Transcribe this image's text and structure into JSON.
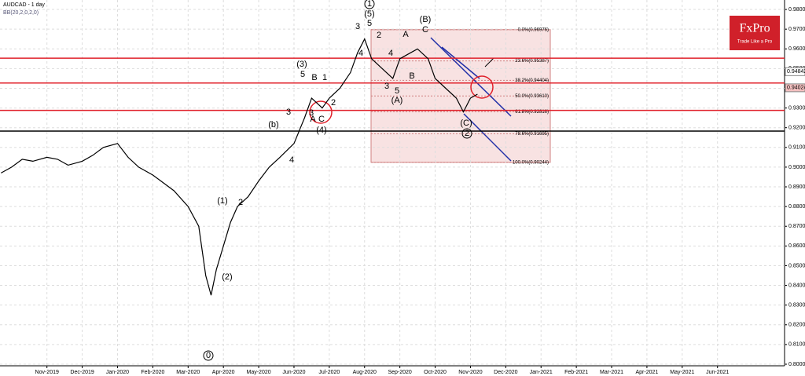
{
  "chart_data": {
    "type": "line",
    "title": "AUDCAD - 1 day",
    "subtitle": "BB(20,2,0,2,0)",
    "logo": "FxPro",
    "tagline": "Trade Like a Pro",
    "x": [
      -0.3,
      0,
      0.3,
      0.6,
      1,
      1.3,
      1.6,
      2,
      2.3,
      2.6,
      3,
      3.3,
      3.6,
      4,
      4.3,
      4.6,
      5,
      5.3,
      5.5,
      5.65,
      5.8,
      6,
      6.2,
      6.4,
      6.7,
      7,
      7.3,
      7.6,
      8,
      8.3,
      8.5,
      8.8,
      9,
      9.3,
      9.6,
      9.8,
      10,
      10.2,
      10.5,
      10.8,
      11,
      11.3,
      11.5,
      11.8,
      12,
      12.3,
      12.6,
      12.8,
      13,
      13.2
    ],
    "series": [
      {
        "name": "AUDCAD",
        "color": "#000000",
        "values": [
          0.897,
          0.9,
          0.904,
          0.903,
          0.905,
          0.904,
          0.901,
          0.903,
          0.906,
          0.91,
          0.912,
          0.905,
          0.9,
          0.896,
          0.892,
          0.888,
          0.88,
          0.87,
          0.845,
          0.835,
          0.848,
          0.86,
          0.872,
          0.88,
          0.885,
          0.893,
          0.9,
          0.905,
          0.912,
          0.925,
          0.935,
          0.93,
          0.935,
          0.94,
          0.948,
          0.958,
          0.965,
          0.955,
          0.95,
          0.945,
          0.955,
          0.958,
          0.96,
          0.955,
          0.945,
          0.94,
          0.935,
          0.928,
          0.935,
          0.937
        ]
      }
    ],
    "xlim": [
      -0.33,
      21.9
    ],
    "ylim": [
      0.7992,
      0.9848
    ],
    "xticks": [
      {
        "value": 1,
        "label": "Nov-2019"
      },
      {
        "value": 2,
        "label": "Dec-2019"
      },
      {
        "value": 3,
        "label": "Jan-2020"
      },
      {
        "value": 4,
        "label": "Feb-2020"
      },
      {
        "value": 5,
        "label": "Mar-2020"
      },
      {
        "value": 6,
        "label": "Apr-2020"
      },
      {
        "value": 7,
        "label": "May-2020"
      },
      {
        "value": 8,
        "label": "Jun-2020"
      },
      {
        "value": 9,
        "label": "Jul-2020"
      },
      {
        "value": 10,
        "label": "Aug-2020"
      },
      {
        "value": 11,
        "label": "Sep-2020"
      },
      {
        "value": 12,
        "label": "Oct-2020"
      },
      {
        "value": 13,
        "label": "Nov-2020"
      },
      {
        "value": 14,
        "label": "Dec-2020"
      },
      {
        "value": 15,
        "label": "Jan-2021"
      },
      {
        "value": 16,
        "label": "Feb-2021"
      },
      {
        "value": 17,
        "label": "Mar-2021"
      },
      {
        "value": 18,
        "label": "Apr-2021"
      },
      {
        "value": 19,
        "label": "May-2021"
      },
      {
        "value": 20,
        "label": "Jun-2021"
      }
    ],
    "yticks": [
      {
        "value": 0.98,
        "label": "0.98000"
      },
      {
        "value": 0.97,
        "label": "0.97000"
      },
      {
        "value": 0.96,
        "label": "0.96000"
      },
      {
        "value": 0.95,
        "label": "0.95000"
      },
      {
        "value": 0.94,
        "label": "0.94000"
      },
      {
        "value": 0.93,
        "label": "0.93000"
      },
      {
        "value": 0.92,
        "label": "0.92000"
      },
      {
        "value": 0.91,
        "label": "0.91000"
      },
      {
        "value": 0.9,
        "label": "0.90000"
      },
      {
        "value": 0.89,
        "label": "0.89000"
      },
      {
        "value": 0.88,
        "label": "0.88000"
      },
      {
        "value": 0.87,
        "label": "0.87000"
      },
      {
        "value": 0.86,
        "label": "0.86000"
      },
      {
        "value": 0.85,
        "label": "0.85000"
      },
      {
        "value": 0.84,
        "label": "0.84000"
      },
      {
        "value": 0.83,
        "label": "0.83000"
      },
      {
        "value": 0.82,
        "label": "0.82000"
      },
      {
        "value": 0.81,
        "label": "0.81000"
      },
      {
        "value": 0.8,
        "label": "0.80000"
      }
    ],
    "price_tags": [
      0.94842,
      0.94024
    ],
    "red_levels": [
      0.9553,
      0.9427,
      0.9288
    ],
    "black_level": 0.9183,
    "fib_levels": [
      {
        "value": 0.96976,
        "label": "0.0%(0.96976)"
      },
      {
        "value": 0.95387,
        "label": "23.6%(0.95387)"
      },
      {
        "value": 0.94404,
        "label": "38.2%(0.94404)"
      },
      {
        "value": 0.9361,
        "label": "50.0%(0.93610)"
      },
      {
        "value": 0.92816,
        "label": "61.8%(0.92816)"
      },
      {
        "value": 0.91695,
        "label": "78.6%(0.91695)"
      },
      {
        "value": 0.90244,
        "label": "100.0%(0.90244)"
      }
    ],
    "annotations": [
      "1",
      "(5)",
      "5",
      "3",
      "(B)",
      "A",
      "C",
      "2",
      "4",
      "4",
      "3",
      "5",
      "(A)",
      "B",
      "(C)",
      "2",
      "(3)",
      "5",
      "B",
      "1",
      "3",
      "A",
      "C",
      "2",
      "(4)",
      "4",
      "3",
      "(1)",
      "2",
      "(2)",
      "0",
      "(b)"
    ]
  }
}
